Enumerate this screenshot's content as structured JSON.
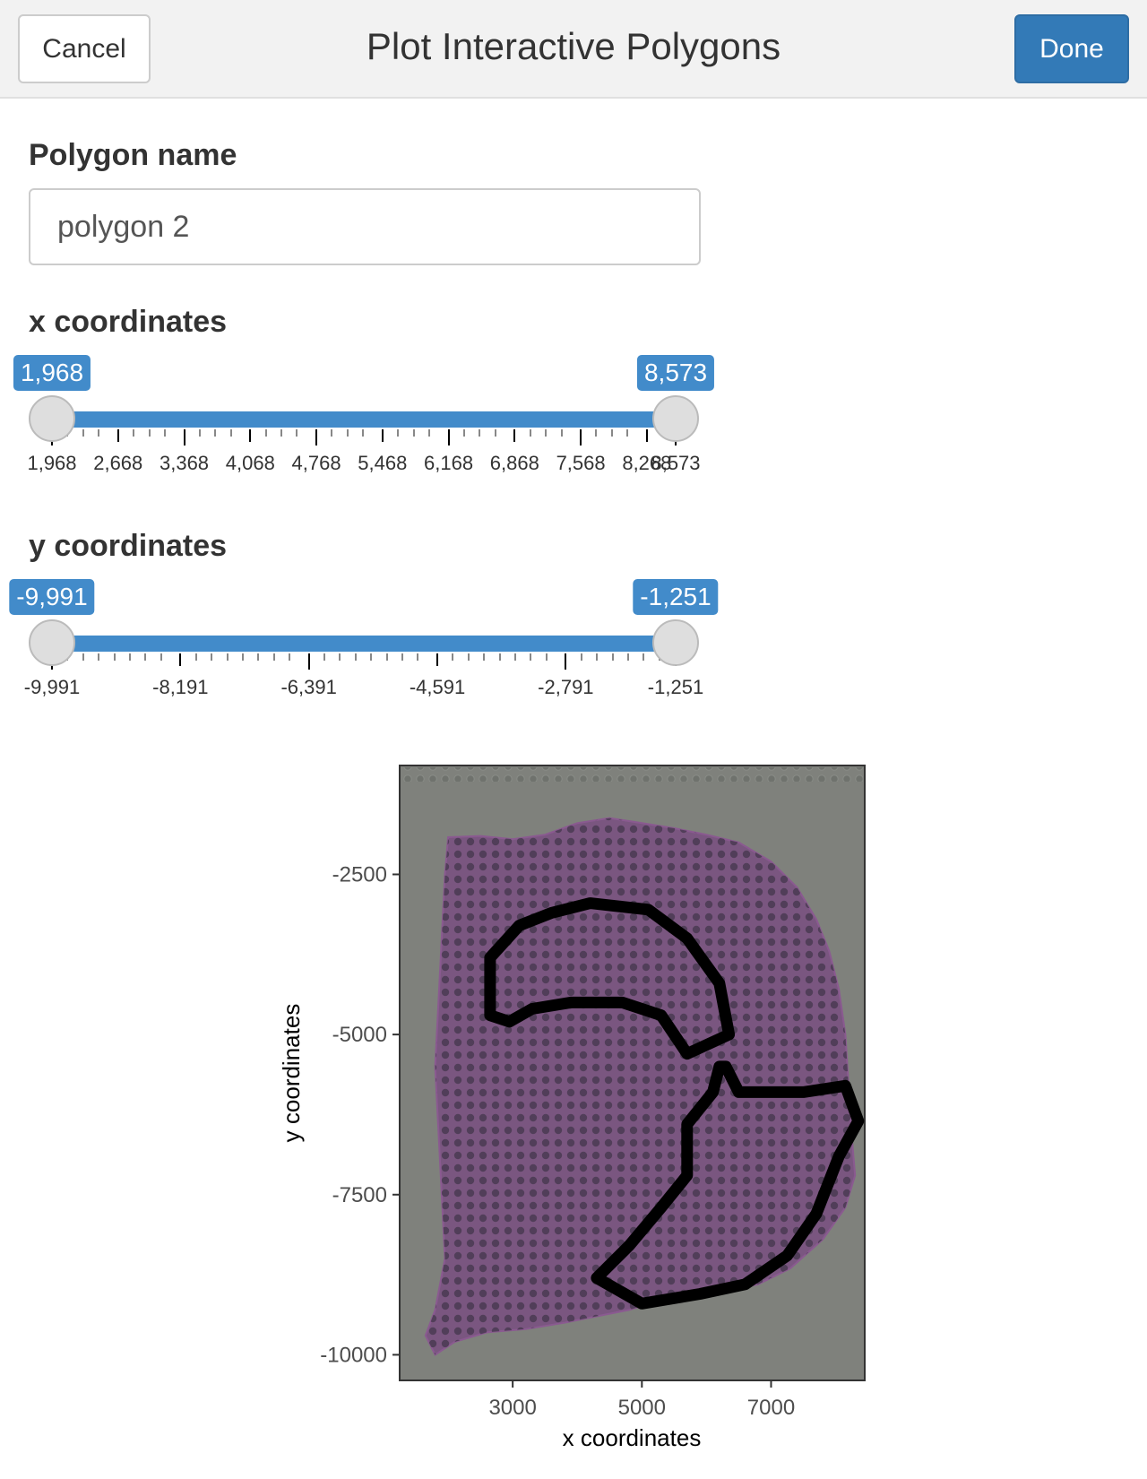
{
  "header": {
    "title": "Plot Interactive Polygons",
    "cancel_label": "Cancel",
    "done_label": "Done"
  },
  "polygon_name": {
    "label": "Polygon name",
    "value": "polygon 2"
  },
  "x_slider": {
    "label": "x coordinates",
    "min": 1968,
    "max": 8573,
    "from": 1968,
    "to": 8573,
    "from_label": "1,968",
    "to_label": "8,573",
    "major_tick_values": [
      1968,
      2668,
      3368,
      4068,
      4768,
      5468,
      6168,
      6868,
      7568,
      8268,
      8573
    ],
    "tick_labels": [
      "1,968",
      "2,668",
      "3,368",
      "4,068",
      "4,768",
      "5,468",
      "6,168",
      "6,868",
      "7,568",
      "8,268",
      "8,573"
    ]
  },
  "y_slider": {
    "label": "y coordinates",
    "min": -9991,
    "max": -1251,
    "from": -9991,
    "to": -1251,
    "from_label": "-9,991",
    "to_label": "-1,251",
    "major_tick_values": [
      -9991,
      -8191,
      -6391,
      -4591,
      -2791,
      -1251
    ],
    "tick_labels": [
      "-9,991",
      "-8,191",
      "-6,391",
      "-4,591",
      "-2,791",
      "-1,251"
    ]
  },
  "colors": {
    "accent": "#428bca",
    "done_button": "#337ab7",
    "plot_background": "#7f817c",
    "tissue": "#7a5680",
    "polygon_stroke": "#000000"
  },
  "chart_data": {
    "type": "scatter",
    "xlabel": "x coordinates",
    "ylabel": "y coordinates",
    "xlim": [
      1250,
      8450
    ],
    "ylim": [
      -10400,
      -800
    ],
    "x_ticks": [
      3000,
      5000,
      7000
    ],
    "x_tick_labels": [
      "3000",
      "5000",
      "7000"
    ],
    "y_ticks": [
      -2500,
      -5000,
      -7500,
      -10000
    ],
    "y_tick_labels": [
      "-2500",
      "-5000",
      "-7500",
      "-10000"
    ],
    "background_image": "tissue-section",
    "tissue_outline": [
      [
        2000,
        -1920
      ],
      [
        2500,
        -1900
      ],
      [
        3000,
        -1950
      ],
      [
        3500,
        -1880
      ],
      [
        4000,
        -1700
      ],
      [
        4500,
        -1620
      ],
      [
        5000,
        -1700
      ],
      [
        5500,
        -1780
      ],
      [
        6000,
        -1880
      ],
      [
        6500,
        -2000
      ],
      [
        7000,
        -2300
      ],
      [
        7400,
        -2700
      ],
      [
        7700,
        -3200
      ],
      [
        7900,
        -3700
      ],
      [
        8050,
        -4300
      ],
      [
        8150,
        -5000
      ],
      [
        8200,
        -5800
      ],
      [
        8250,
        -6600
      ],
      [
        8300,
        -7200
      ],
      [
        8150,
        -7700
      ],
      [
        7800,
        -8200
      ],
      [
        7300,
        -8650
      ],
      [
        6800,
        -8900
      ],
      [
        6300,
        -9000
      ],
      [
        5800,
        -9100
      ],
      [
        5300,
        -9150
      ],
      [
        4800,
        -9300
      ],
      [
        4300,
        -9400
      ],
      [
        3800,
        -9500
      ],
      [
        3200,
        -9600
      ],
      [
        2600,
        -9650
      ],
      [
        2100,
        -9800
      ],
      [
        1800,
        -10000
      ],
      [
        1650,
        -9700
      ],
      [
        1800,
        -9300
      ],
      [
        1950,
        -8500
      ],
      [
        1900,
        -7500
      ],
      [
        1850,
        -6500
      ],
      [
        1800,
        -5500
      ],
      [
        1850,
        -4500
      ],
      [
        1900,
        -3500
      ],
      [
        1950,
        -2500
      ]
    ],
    "polygons": [
      {
        "points": [
          [
            2650,
            -3800
          ],
          [
            3100,
            -3300
          ],
          [
            3600,
            -3100
          ],
          [
            4200,
            -2950
          ],
          [
            5100,
            -3050
          ],
          [
            5700,
            -3500
          ],
          [
            6200,
            -4200
          ],
          [
            6350,
            -5000
          ],
          [
            5700,
            -5300
          ],
          [
            5300,
            -4700
          ],
          [
            4700,
            -4500
          ],
          [
            3900,
            -4500
          ],
          [
            3300,
            -4600
          ],
          [
            2950,
            -4800
          ],
          [
            2650,
            -4700
          ]
        ]
      },
      {
        "points": [
          [
            6200,
            -5500
          ],
          [
            6100,
            -5900
          ],
          [
            5700,
            -6400
          ],
          [
            5700,
            -7200
          ],
          [
            5300,
            -7700
          ],
          [
            4800,
            -8300
          ],
          [
            4300,
            -8800
          ],
          [
            5000,
            -9200
          ],
          [
            5900,
            -9050
          ],
          [
            6600,
            -8900
          ],
          [
            7250,
            -8450
          ],
          [
            7700,
            -7800
          ],
          [
            8050,
            -6900
          ],
          [
            8350,
            -6350
          ],
          [
            8150,
            -5800
          ],
          [
            7500,
            -5900
          ],
          [
            6800,
            -5900
          ],
          [
            6500,
            -5900
          ],
          [
            6300,
            -5500
          ]
        ]
      }
    ]
  }
}
